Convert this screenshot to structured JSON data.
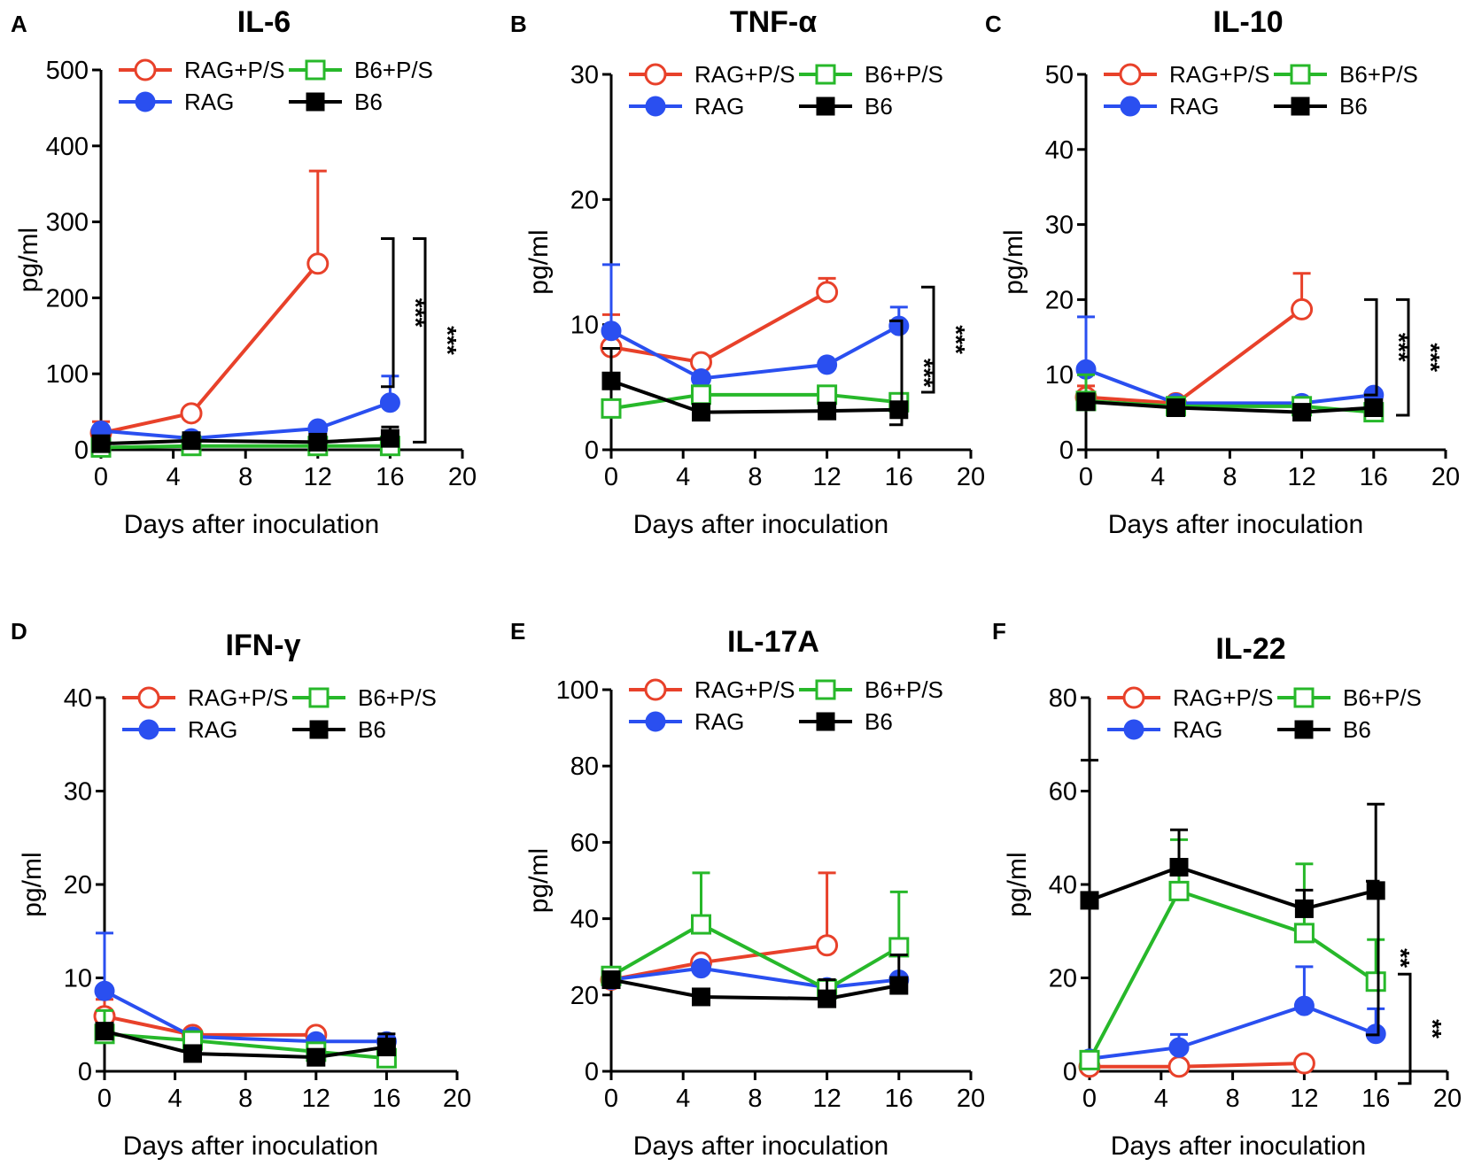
{
  "figure": {
    "colors": {
      "RAG+P/S": "#e8412a",
      "RAG": "#2a4ff0",
      "B6+P/S": "#27b82a",
      "B6": "#000000"
    },
    "legend_order": [
      "RAG+P/S",
      "B6+P/S",
      "RAG",
      "B6"
    ]
  },
  "chart_data": [
    {
      "type": "line",
      "panel": "A",
      "title": "IL-6",
      "xlabel": "Days after inoculation",
      "ylabel": "pg/ml",
      "xlim": [
        0,
        20
      ],
      "ylim": [
        0,
        500
      ],
      "xticks": [
        0,
        4,
        8,
        12,
        16,
        20
      ],
      "yticks": [
        0,
        100,
        200,
        300,
        400,
        500
      ],
      "series": [
        {
          "name": "RAG+P/S",
          "marker": "open-circle",
          "x": [
            0,
            5,
            12
          ],
          "y": [
            22,
            48,
            245
          ],
          "err": [
            15,
            null,
            122
          ]
        },
        {
          "name": "RAG",
          "marker": "filled-circle",
          "x": [
            0,
            5,
            12,
            16
          ],
          "y": [
            25,
            15,
            28,
            62
          ],
          "err": [
            null,
            null,
            null,
            35
          ]
        },
        {
          "name": "B6+P/S",
          "marker": "open-square",
          "x": [
            0,
            5,
            12,
            16
          ],
          "y": [
            3,
            5,
            5,
            5
          ],
          "err": [
            null,
            null,
            null,
            null
          ]
        },
        {
          "name": "B6",
          "marker": "filled-square",
          "x": [
            0,
            5,
            12,
            16
          ],
          "y": [
            8,
            12,
            10,
            15
          ],
          "err": [
            null,
            null,
            null,
            15
          ]
        }
      ],
      "significance": [
        {
          "label": "***",
          "range": [
            83,
            278
          ]
        },
        {
          "label": "***",
          "range": [
            10,
            278
          ]
        }
      ]
    },
    {
      "type": "line",
      "panel": "B",
      "title": "TNF-α",
      "xlabel": "Days after inoculation",
      "ylabel": "pg/ml",
      "xlim": [
        0,
        20
      ],
      "ylim": [
        0,
        30
      ],
      "xticks": [
        0,
        4,
        8,
        12,
        16,
        20
      ],
      "yticks": [
        0,
        10,
        20,
        30
      ],
      "series": [
        {
          "name": "RAG+P/S",
          "marker": "open-circle",
          "x": [
            0,
            5,
            12
          ],
          "y": [
            8.2,
            7,
            12.6
          ],
          "err": [
            2.6,
            0.5,
            1.1
          ]
        },
        {
          "name": "RAG",
          "marker": "filled-circle",
          "x": [
            0,
            5,
            12,
            16
          ],
          "y": [
            9.5,
            5.7,
            6.8,
            9.9
          ],
          "err": [
            5.3,
            null,
            null,
            1.5
          ]
        },
        {
          "name": "B6+P/S",
          "marker": "open-square",
          "x": [
            0,
            5,
            12,
            16
          ],
          "y": [
            3.3,
            4.4,
            4.4,
            3.8
          ],
          "err": [
            null,
            null,
            null,
            null
          ]
        },
        {
          "name": "B6",
          "marker": "filled-square",
          "x": [
            0,
            5,
            12,
            16
          ],
          "y": [
            5.5,
            3,
            3.1,
            3.2
          ],
          "err": [
            2.6,
            null,
            null,
            null
          ]
        }
      ],
      "significance": [
        {
          "label": "***",
          "range": [
            2,
            10.3
          ]
        },
        {
          "label": "***",
          "range": [
            4.6,
            13
          ]
        }
      ]
    },
    {
      "type": "line",
      "panel": "C",
      "title": "IL-10",
      "xlabel": "Days after inoculation",
      "ylabel": "pg/ml",
      "xlim": [
        0,
        20
      ],
      "ylim": [
        0,
        50
      ],
      "xticks": [
        0,
        4,
        8,
        12,
        16,
        20
      ],
      "yticks": [
        0,
        10,
        20,
        30,
        40,
        50
      ],
      "series": [
        {
          "name": "RAG+P/S",
          "marker": "open-circle",
          "x": [
            0,
            5,
            12
          ],
          "y": [
            7,
            6.2,
            18.7
          ],
          "err": [
            1.5,
            null,
            4.8
          ]
        },
        {
          "name": "RAG",
          "marker": "filled-circle",
          "x": [
            0,
            5,
            12,
            16
          ],
          "y": [
            10.7,
            6.2,
            6.2,
            7.3
          ],
          "err": [
            7,
            null,
            null,
            null
          ]
        },
        {
          "name": "B6+P/S",
          "marker": "open-square",
          "x": [
            0,
            5,
            12,
            16
          ],
          "y": [
            6.5,
            5.8,
            5.8,
            5
          ],
          "err": [
            3.5,
            null,
            null,
            null
          ]
        },
        {
          "name": "B6",
          "marker": "filled-square",
          "x": [
            0,
            5,
            12,
            16
          ],
          "y": [
            6.4,
            5.6,
            5,
            5.6
          ],
          "err": [
            null,
            null,
            null,
            null
          ]
        }
      ],
      "significance": [
        {
          "label": "***",
          "range": [
            7.3,
            20
          ]
        },
        {
          "label": "***",
          "range": [
            4.6,
            20
          ]
        }
      ]
    },
    {
      "type": "line",
      "panel": "D",
      "title": "IFN-γ",
      "xlabel": "Days after inoculation",
      "ylabel": "pg/ml",
      "xlim": [
        0,
        20
      ],
      "ylim": [
        0,
        40
      ],
      "xticks": [
        0,
        4,
        8,
        12,
        16,
        20
      ],
      "yticks": [
        0,
        10,
        20,
        30,
        40
      ],
      "series": [
        {
          "name": "RAG+P/S",
          "marker": "open-circle",
          "x": [
            0,
            5,
            12
          ],
          "y": [
            5.9,
            3.9,
            3.9
          ],
          "err": [
            1.8,
            null,
            null
          ]
        },
        {
          "name": "RAG",
          "marker": "filled-circle",
          "x": [
            0,
            5,
            12,
            16
          ],
          "y": [
            8.6,
            3.7,
            3.2,
            3.2
          ],
          "err": [
            6.2,
            null,
            null,
            null
          ]
        },
        {
          "name": "B6+P/S",
          "marker": "open-square",
          "x": [
            0,
            5,
            12,
            16
          ],
          "y": [
            4,
            3.3,
            2.1,
            1.4
          ],
          "err": [
            2.5,
            null,
            null,
            null
          ]
        },
        {
          "name": "B6",
          "marker": "filled-square",
          "x": [
            0,
            5,
            12,
            16
          ],
          "y": [
            4.3,
            1.9,
            1.5,
            2.6
          ],
          "err": [
            null,
            null,
            null,
            1.4
          ]
        }
      ],
      "significance": []
    },
    {
      "type": "line",
      "panel": "E",
      "title": "IL-17A",
      "xlabel": "Days after inoculation",
      "ylabel": "pg/ml",
      "xlim": [
        0,
        20
      ],
      "ylim": [
        0,
        100
      ],
      "xticks": [
        0,
        4,
        8,
        12,
        16,
        20
      ],
      "yticks": [
        0,
        20,
        40,
        60,
        80,
        100
      ],
      "series": [
        {
          "name": "RAG+P/S",
          "marker": "open-circle",
          "x": [
            0,
            5,
            12
          ],
          "y": [
            24,
            28.5,
            33
          ],
          "err": [
            null,
            null,
            19
          ]
        },
        {
          "name": "RAG",
          "marker": "filled-circle",
          "x": [
            0,
            5,
            12,
            16
          ],
          "y": [
            24,
            27,
            22,
            24
          ],
          "err": [
            null,
            null,
            null,
            null
          ]
        },
        {
          "name": "B6+P/S",
          "marker": "open-square",
          "x": [
            0,
            5,
            12,
            16
          ],
          "y": [
            25,
            38.5,
            21.5,
            32.5
          ],
          "err": [
            null,
            13.5,
            null,
            14.5
          ]
        },
        {
          "name": "B6",
          "marker": "filled-square",
          "x": [
            0,
            5,
            12,
            16
          ],
          "y": [
            24,
            19.5,
            19,
            22.5
          ],
          "err": [
            null,
            null,
            5,
            8
          ]
        }
      ],
      "significance": []
    },
    {
      "type": "line",
      "panel": "F",
      "title": "IL-22",
      "xlabel": "Days after inoculation",
      "ylabel": "pg/ml",
      "xlim": [
        0,
        20
      ],
      "ylim": [
        0,
        80
      ],
      "xticks": [
        0,
        4,
        8,
        12,
        16,
        20
      ],
      "yticks": [
        0,
        20,
        40,
        60,
        80
      ],
      "series": [
        {
          "name": "RAG+P/S",
          "marker": "open-circle",
          "x": [
            0,
            5,
            12
          ],
          "y": [
            1,
            1,
            1.7
          ],
          "err": [
            null,
            null,
            null
          ]
        },
        {
          "name": "RAG",
          "marker": "filled-circle",
          "x": [
            0,
            5,
            12,
            16
          ],
          "y": [
            2.7,
            5.1,
            14,
            8
          ],
          "err": [
            null,
            2.8,
            8.4,
            5.4
          ]
        },
        {
          "name": "B6+P/S",
          "marker": "open-square",
          "x": [
            0,
            5,
            12,
            16
          ],
          "y": [
            2.4,
            38.6,
            29.6,
            19.2
          ],
          "err": [
            null,
            11,
            14.8,
            9
          ]
        },
        {
          "name": "B6",
          "marker": "filled-square",
          "x": [
            0,
            5,
            12,
            16
          ],
          "y": [
            36.6,
            43.7,
            34.8,
            38.7
          ],
          "err": [
            30,
            8,
            4,
            18.5
          ]
        }
      ],
      "significance": [
        {
          "label": "**",
          "range": [
            7.8,
            40.7
          ]
        },
        {
          "label": "**",
          "range": [
            -2.6,
            20.8
          ]
        }
      ]
    }
  ]
}
